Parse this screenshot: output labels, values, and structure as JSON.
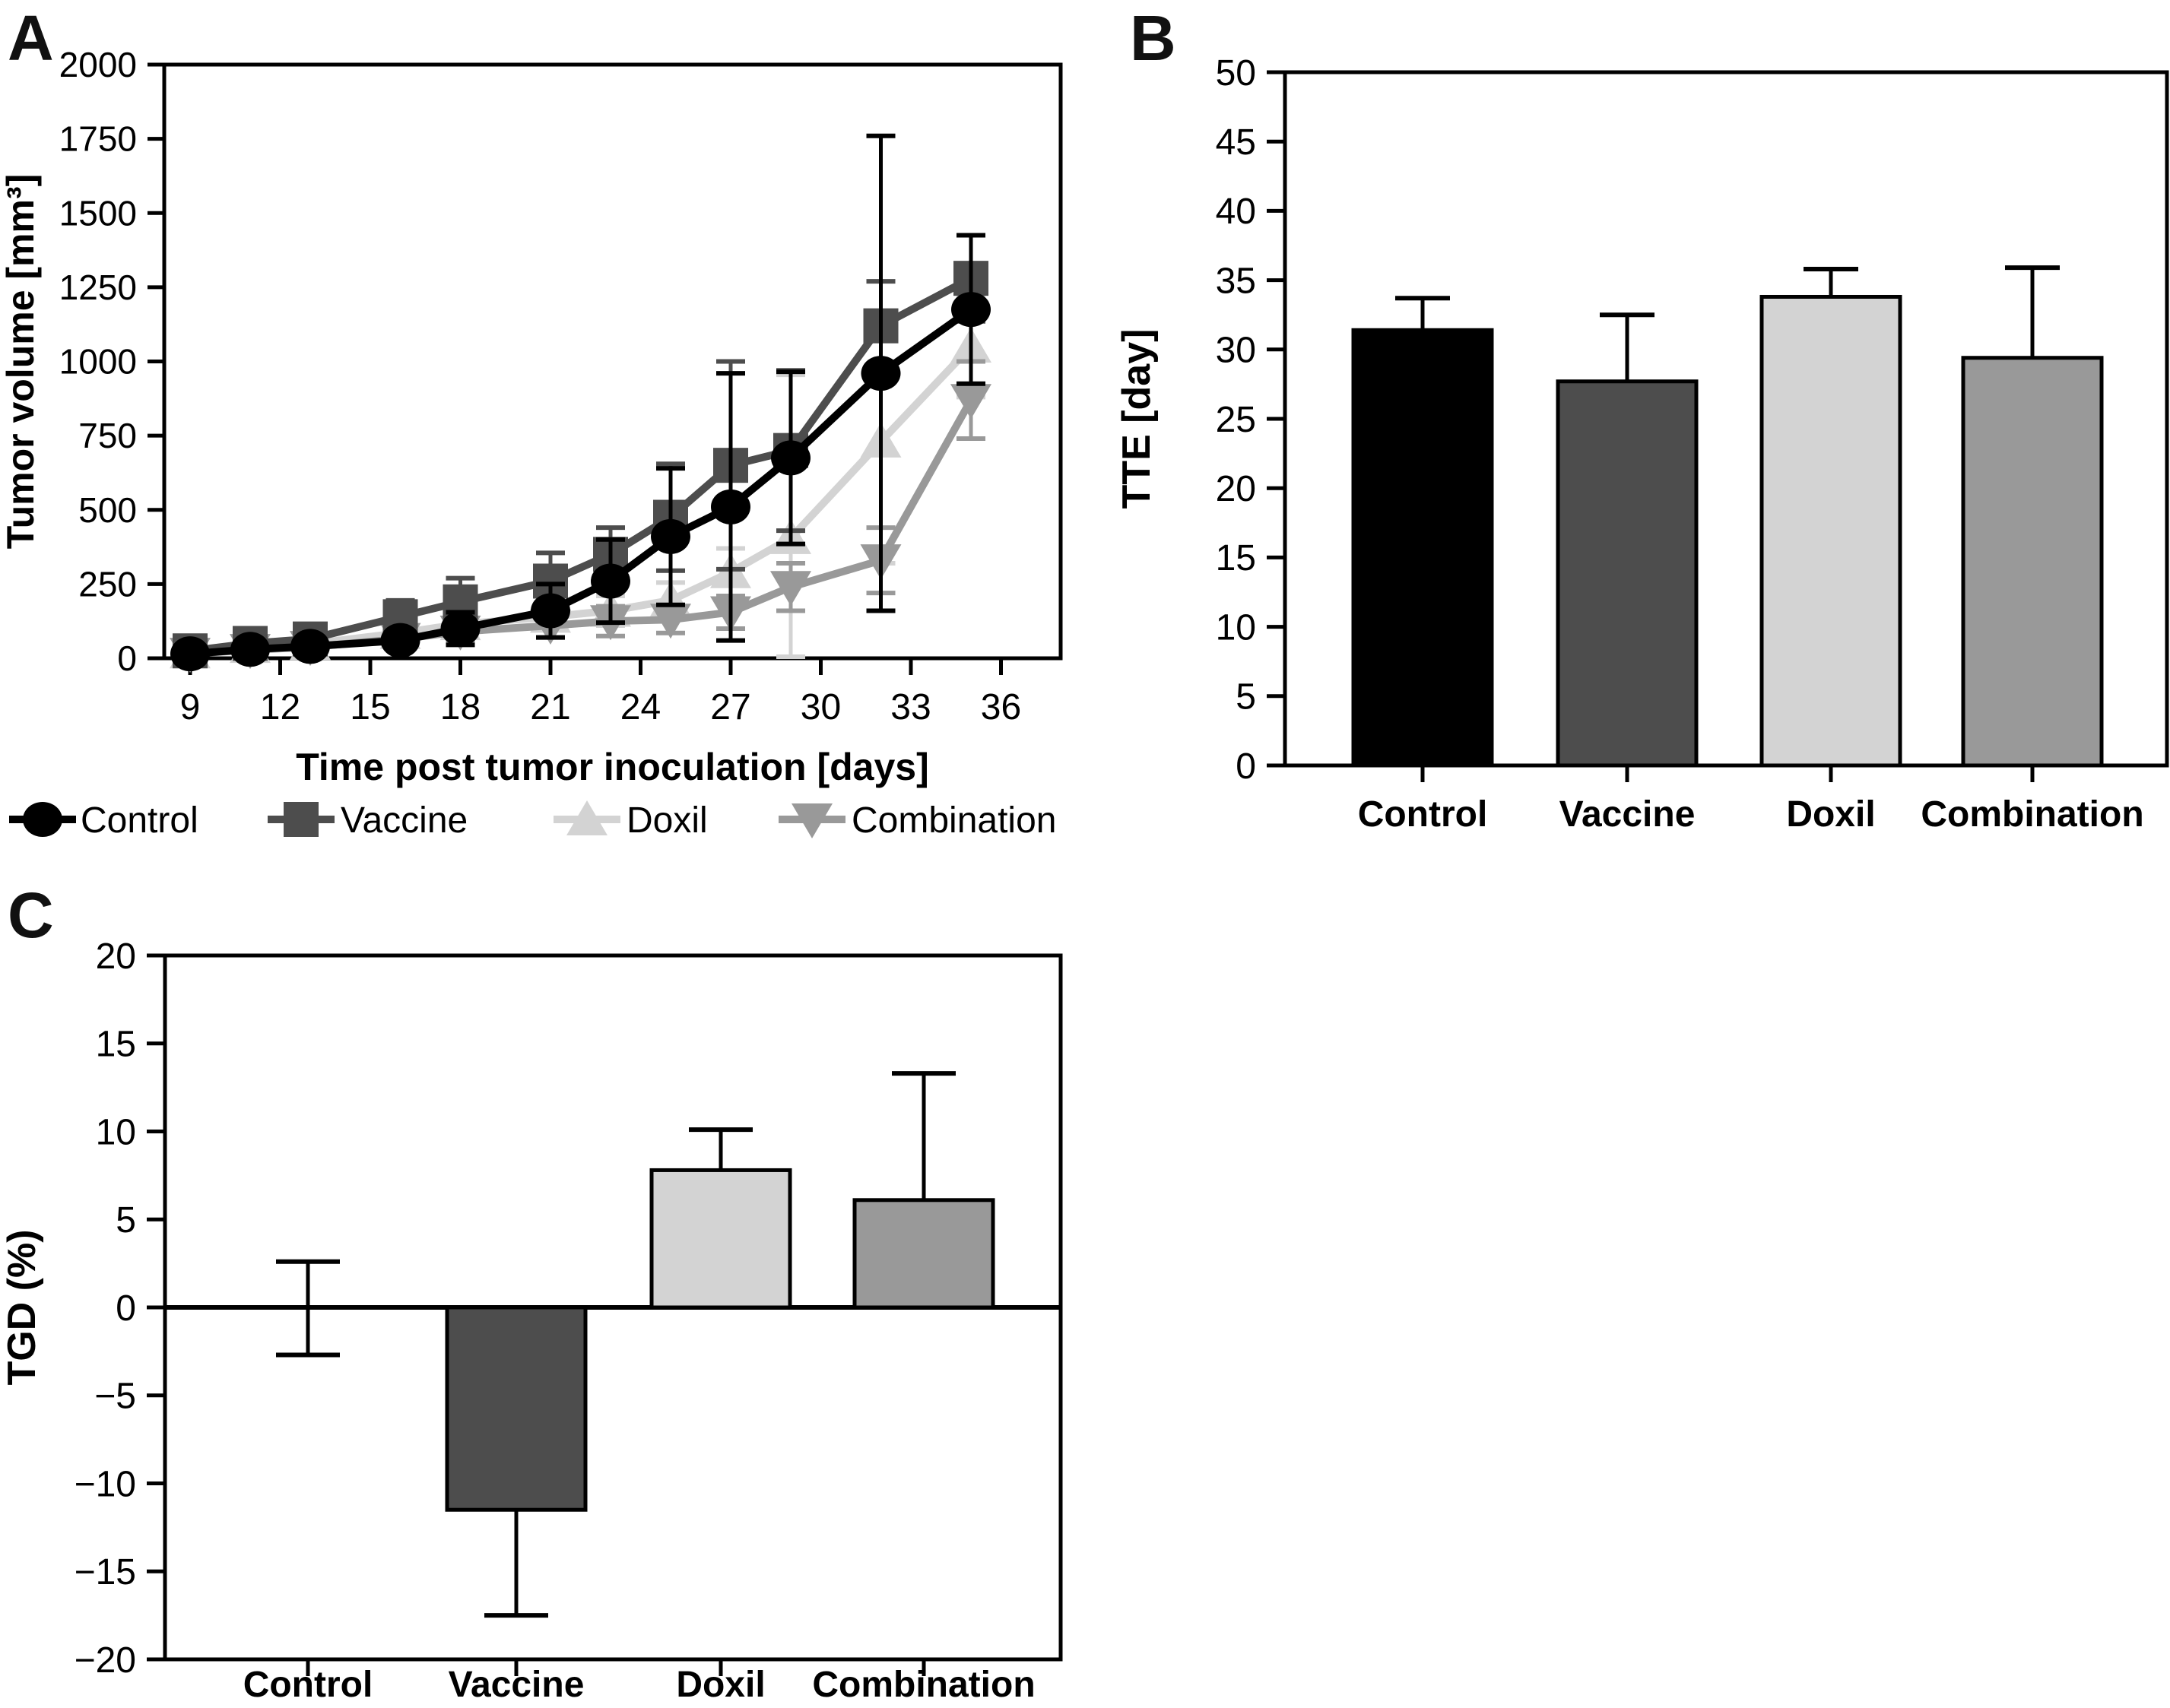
{
  "panels": {
    "a_label": "A",
    "b_label": "B",
    "c_label": "C"
  },
  "palette": {
    "control": "#000000",
    "vaccine": "#4d4d4d",
    "doxil": "#d3d3d3",
    "combination": "#999999",
    "axis": "#000000",
    "background": "#ffffff"
  },
  "chart_data": [
    {
      "id": "A",
      "type": "line",
      "title": "",
      "xlabel": "Time post tumor inoculation [days]",
      "ylabel": "Tumor volume [mm³]",
      "ylim": [
        0,
        2000
      ],
      "yticks": [
        0,
        250,
        500,
        750,
        1000,
        1250,
        1500,
        1750,
        2000
      ],
      "xticks": [
        9,
        12,
        15,
        18,
        21,
        24,
        27,
        30,
        33,
        36
      ],
      "x": [
        9,
        11,
        13,
        16,
        18,
        21,
        23,
        25,
        27,
        29,
        32,
        35
      ],
      "grid": false,
      "legend_position": "bottom",
      "series": [
        {
          "name": "Control",
          "marker": "circle",
          "color": "#000000",
          "values": [
            15,
            30,
            40,
            60,
            100,
            160,
            260,
            410,
            510,
            675,
            960,
            1175
          ],
          "err": [
            8,
            10,
            12,
            25,
            55,
            90,
            140,
            230,
            450,
            290,
            800,
            250
          ]
        },
        {
          "name": "Vaccine",
          "marker": "square",
          "color": "#4d4d4d",
          "values": [
            25,
            50,
            65,
            140,
            190,
            260,
            350,
            475,
            650,
            700,
            1120,
            1280
          ],
          "err": [
            12,
            15,
            20,
            55,
            80,
            95,
            90,
            180,
            350,
            270,
            150,
            145
          ]
        },
        {
          "name": "Doxil",
          "marker": "triangle-up",
          "color": "#d3d3d3",
          "values": [
            20,
            38,
            48,
            85,
            115,
            140,
            160,
            195,
            290,
            405,
            730,
            1050
          ],
          "err": [
            10,
            12,
            15,
            25,
            35,
            45,
            50,
            60,
            80,
            550,
            410,
            170
          ]
        },
        {
          "name": "Combination",
          "marker": "triangle-down",
          "color": "#999999",
          "values": [
            15,
            28,
            38,
            65,
            90,
            110,
            125,
            130,
            155,
            240,
            330,
            870
          ],
          "err": [
            8,
            10,
            12,
            20,
            30,
            40,
            50,
            45,
            55,
            80,
            110,
            130
          ]
        }
      ]
    },
    {
      "id": "B",
      "type": "bar",
      "title": "",
      "xlabel": "",
      "ylabel": "TTE [day]",
      "ylim": [
        0,
        50
      ],
      "yticks": [
        0,
        5,
        10,
        15,
        20,
        25,
        30,
        35,
        40,
        45,
        50
      ],
      "categories": [
        "Control",
        "Vaccine",
        "Doxil",
        "Combination"
      ],
      "values": [
        31.4,
        27.7,
        33.8,
        29.4
      ],
      "err_up": [
        2.3,
        4.8,
        2.0,
        6.5
      ],
      "err_down": [
        0,
        0,
        0,
        0
      ],
      "colors": [
        "#000000",
        "#4d4d4d",
        "#d3d3d3",
        "#999999"
      ],
      "grid": false
    },
    {
      "id": "C",
      "type": "bar",
      "title": "",
      "xlabel": "",
      "ylabel": "TGD (%)",
      "ylim": [
        -20,
        20
      ],
      "yticks": [
        20,
        15,
        10,
        5,
        0,
        -5,
        -10,
        -15,
        -20
      ],
      "categories": [
        "Control",
        "Vaccine",
        "Doxil",
        "Combination"
      ],
      "values": [
        0,
        -11.5,
        7.8,
        6.1
      ],
      "err_up": [
        2.6,
        0,
        2.3,
        7.2
      ],
      "err_down": [
        2.7,
        6.0,
        0,
        0
      ],
      "colors": [
        "#000000",
        "#4d4d4d",
        "#d3d3d3",
        "#999999"
      ],
      "grid": false
    }
  ]
}
